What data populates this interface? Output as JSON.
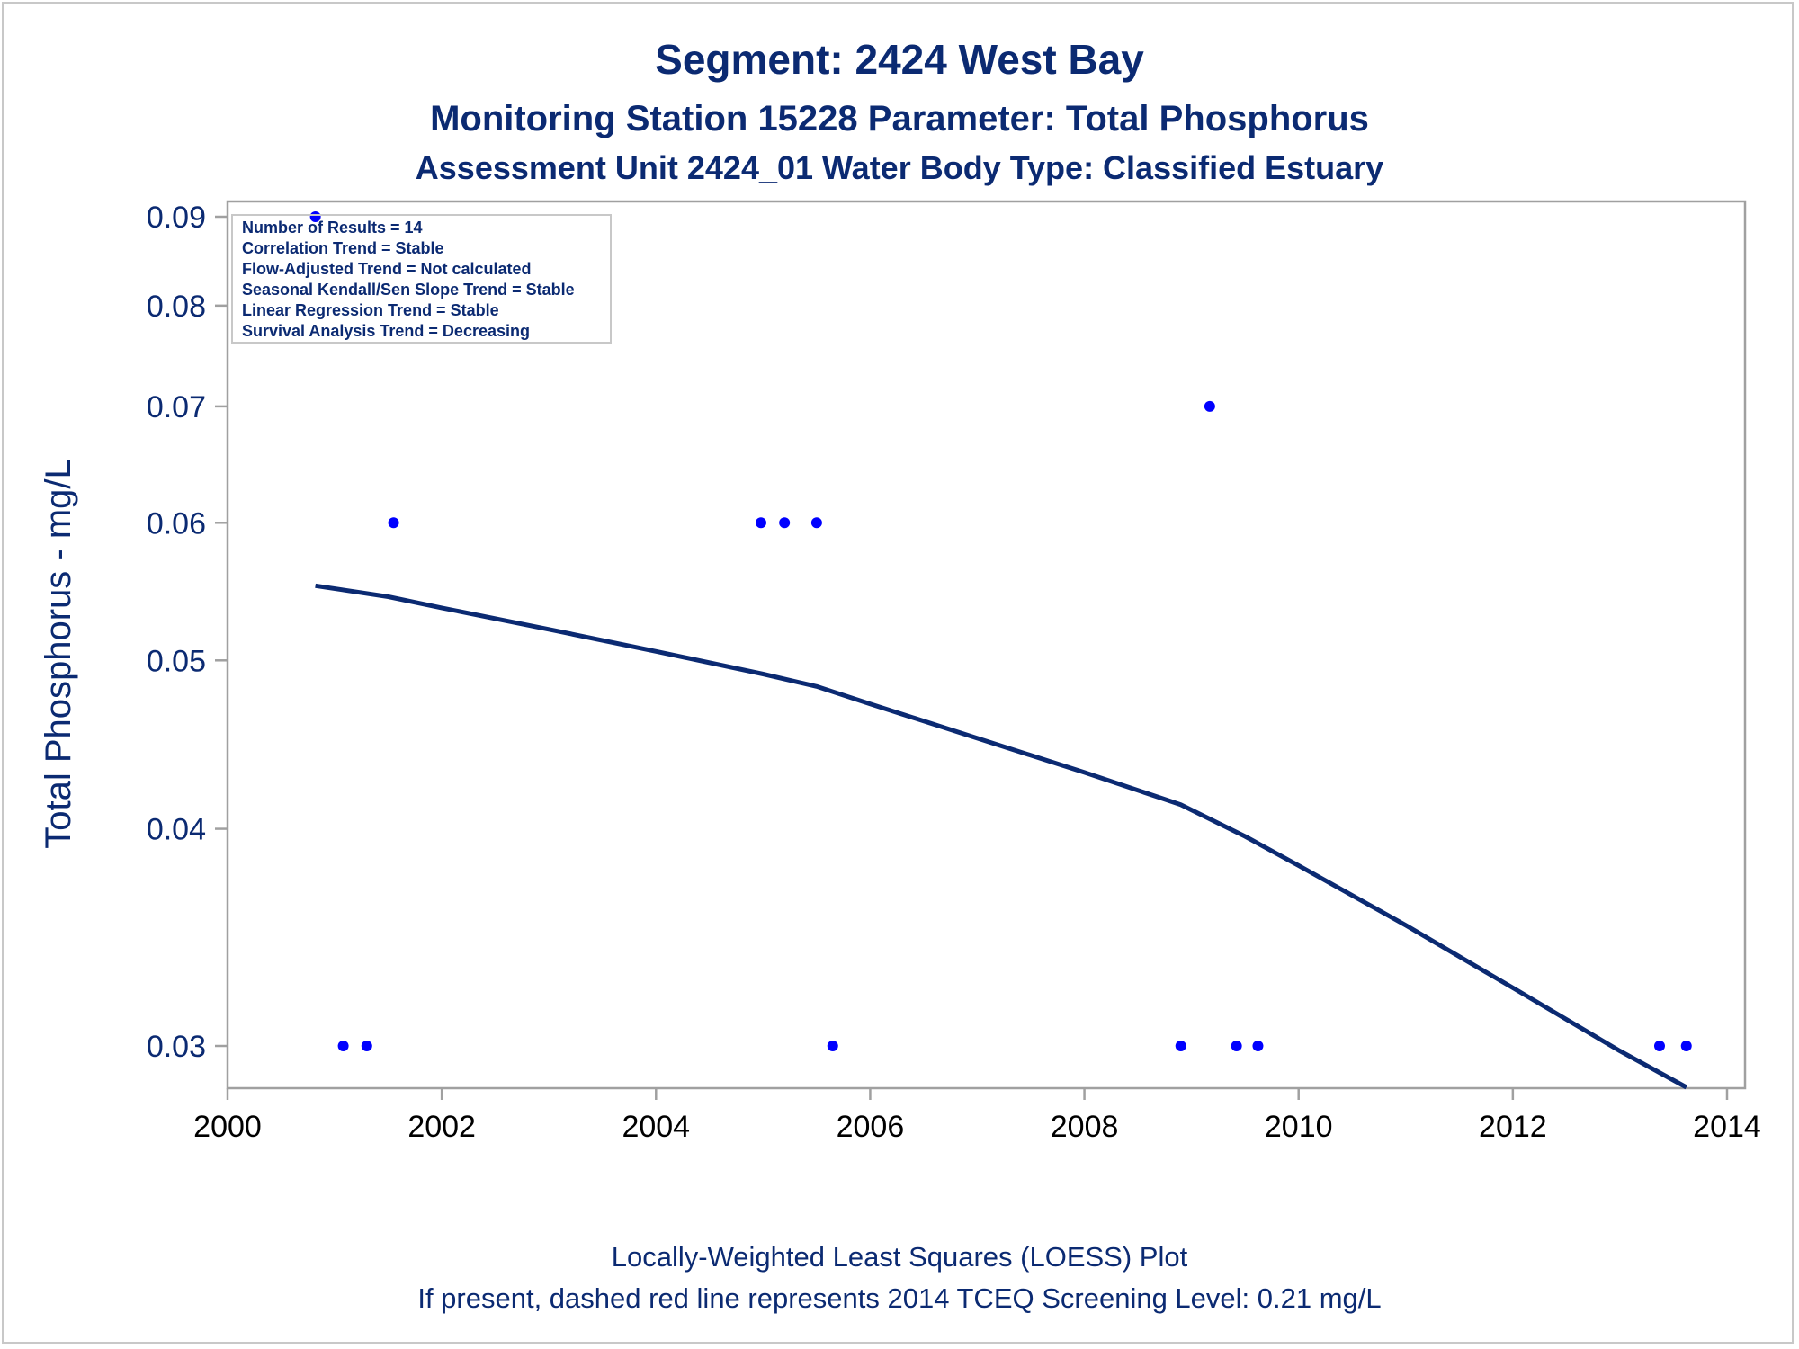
{
  "titles": {
    "line1": "Segment: 2424  West Bay",
    "line2": "Monitoring Station 15228 Parameter: Total Phosphorus",
    "line3": "Assessment Unit 2424_01   Water Body Type: Classified Estuary"
  },
  "footnotes": {
    "line1": "Locally-Weighted Least Squares (LOESS) Plot",
    "line2": "If present, dashed red line represents 2014 TCEQ Screening Level: 0.21 mg/L"
  },
  "colors": {
    "text": "#0b2a72",
    "points": "#0000ff",
    "loess": "#0b2a72",
    "frame": "#a0a0a0"
  },
  "chart_data": {
    "type": "scatter",
    "title": "Segment: 2424  West Bay",
    "xlabel": "",
    "ylabel": "Total Phosphorus - mg/L",
    "y_scale": "log",
    "xlim": [
      2000,
      2014
    ],
    "ylim": [
      0.0285,
      0.09
    ],
    "x_ticks": [
      2000,
      2002,
      2004,
      2006,
      2008,
      2010,
      2012,
      2014
    ],
    "y_ticks": [
      0.03,
      0.04,
      0.05,
      0.06,
      0.07,
      0.08,
      0.09
    ],
    "y_tick_labels": [
      "0.03",
      "0.04",
      "0.05",
      "0.06",
      "0.07",
      "0.08",
      "0.09"
    ],
    "grid": false,
    "legend_position": "top-left",
    "inset_legend": [
      "Number of Results = 14",
      "Correlation Trend = Stable",
      "Flow-Adjusted Trend = Not calculated",
      "Seasonal Kendall/Sen Slope Trend = Stable",
      "Linear Regression Trend = Stable",
      "Survival Analysis Trend = Decreasing"
    ],
    "series": [
      {
        "type": "scatter",
        "points": [
          {
            "x": 2000.82,
            "y": 0.09
          },
          {
            "x": 2001.08,
            "y": 0.03
          },
          {
            "x": 2001.3,
            "y": 0.03
          },
          {
            "x": 2001.55,
            "y": 0.06
          },
          {
            "x": 2004.98,
            "y": 0.06
          },
          {
            "x": 2005.2,
            "y": 0.06
          },
          {
            "x": 2005.5,
            "y": 0.06
          },
          {
            "x": 2005.65,
            "y": 0.03
          },
          {
            "x": 2008.9,
            "y": 0.03
          },
          {
            "x": 2009.17,
            "y": 0.07
          },
          {
            "x": 2009.42,
            "y": 0.03
          },
          {
            "x": 2009.62,
            "y": 0.03
          },
          {
            "x": 2013.37,
            "y": 0.03
          },
          {
            "x": 2013.62,
            "y": 0.03
          }
        ]
      },
      {
        "type": "line",
        "points": [
          {
            "x": 2000.82,
            "y": 0.0552
          },
          {
            "x": 2001.5,
            "y": 0.0544
          },
          {
            "x": 2002.0,
            "y": 0.0536
          },
          {
            "x": 2003.0,
            "y": 0.0521
          },
          {
            "x": 2004.0,
            "y": 0.0506
          },
          {
            "x": 2005.0,
            "y": 0.0491
          },
          {
            "x": 2005.5,
            "y": 0.0483
          },
          {
            "x": 2006.0,
            "y": 0.0472
          },
          {
            "x": 2007.0,
            "y": 0.0451
          },
          {
            "x": 2008.0,
            "y": 0.0431
          },
          {
            "x": 2008.9,
            "y": 0.0413
          },
          {
            "x": 2009.5,
            "y": 0.0396
          },
          {
            "x": 2010.0,
            "y": 0.0381
          },
          {
            "x": 2011.0,
            "y": 0.0352
          },
          {
            "x": 2012.0,
            "y": 0.0324
          },
          {
            "x": 2013.0,
            "y": 0.0298
          },
          {
            "x": 2013.62,
            "y": 0.0284
          }
        ]
      }
    ]
  }
}
